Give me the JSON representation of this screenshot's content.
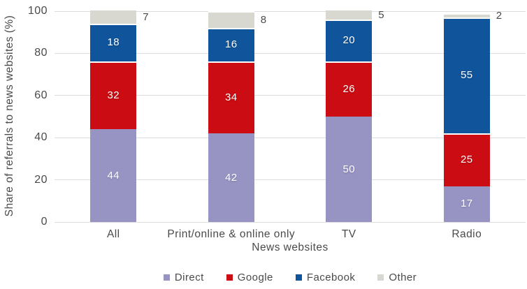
{
  "chart_data": {
    "type": "bar",
    "stacked": true,
    "xlabel": "News websites",
    "ylabel": "Share of referrals to news websites (%)",
    "ylim": [
      0,
      100
    ],
    "yticks": [
      0,
      20,
      40,
      60,
      80,
      100
    ],
    "categories": [
      "All",
      "Print/online & online only",
      "TV",
      "Radio"
    ],
    "series": [
      {
        "name": "Direct",
        "color": "#9793c3",
        "values": [
          44,
          42,
          50,
          17
        ],
        "labels": "inside"
      },
      {
        "name": "Google",
        "color": "#cb0c12",
        "values": [
          32,
          34,
          26,
          25
        ],
        "labels": "inside"
      },
      {
        "name": "Facebook",
        "color": "#10549b",
        "values": [
          18,
          16,
          20,
          55
        ],
        "labels": "inside"
      },
      {
        "name": "Other",
        "color": "#d8d8d1",
        "values": [
          7,
          8,
          5,
          2
        ],
        "labels": "outside"
      }
    ],
    "legend": {
      "position": "bottom",
      "entries": [
        "Direct",
        "Google",
        "Facebook",
        "Other"
      ]
    },
    "grid": "horizontal",
    "styles": {
      "gridline_color": "#dcdcdc",
      "text_color": "#4a4a4a",
      "inside_label_color": "#ffffff",
      "background": "#ffffff"
    }
  }
}
